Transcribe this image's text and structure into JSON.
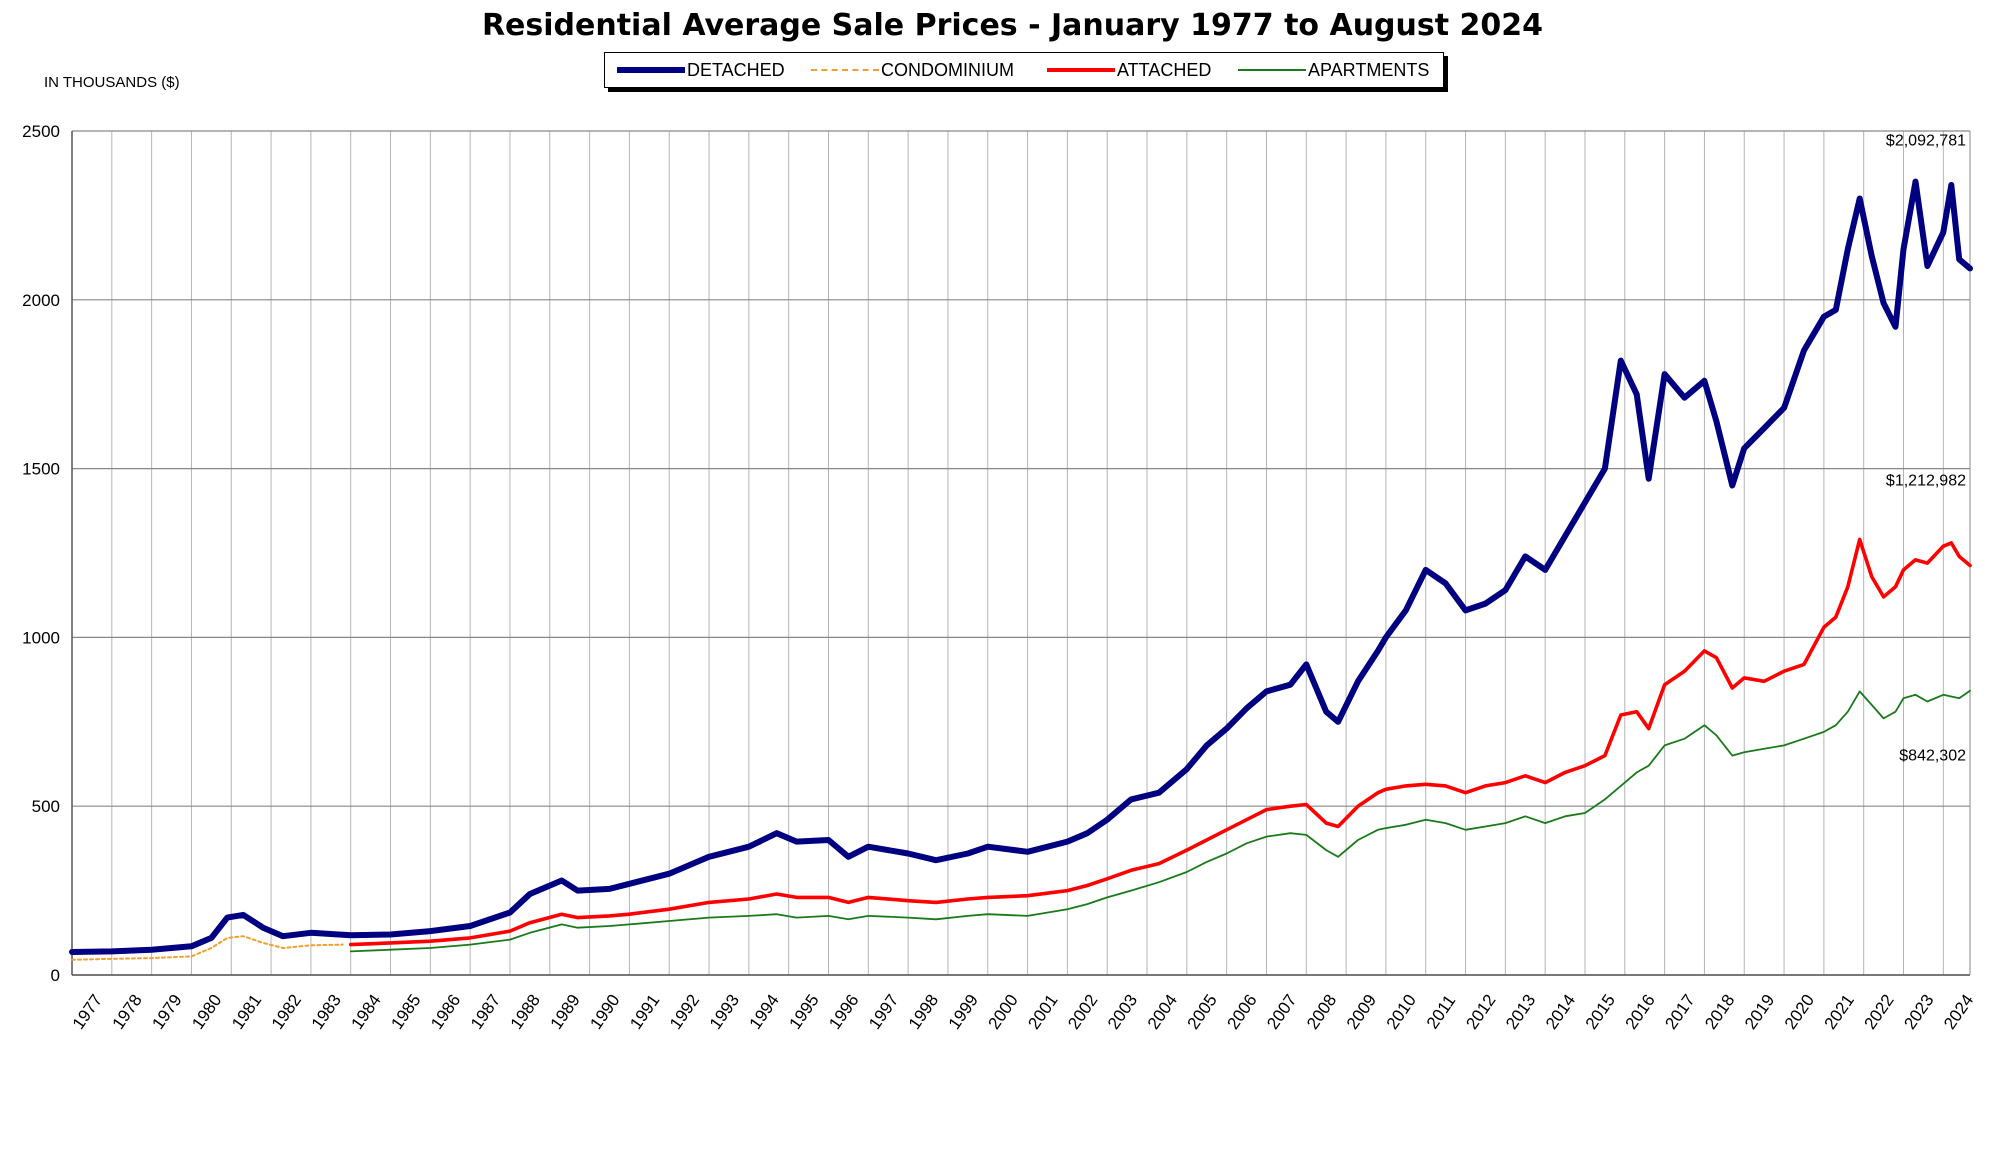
{
  "chart_data": {
    "type": "line",
    "title": "Residential Average Sale Prices  -  January 1977 to August 2024",
    "unit_label": "IN THOUSANDS ($)",
    "ylim": [
      0,
      2500
    ],
    "yticks": [
      0,
      500,
      1000,
      1500,
      2000,
      2500
    ],
    "xlim": [
      1977,
      2024.67
    ],
    "xtick_labels": [
      "1977",
      "1978",
      "1979",
      "1980",
      "1981",
      "1982",
      "1983",
      "1984",
      "1985",
      "1986",
      "1987",
      "1988",
      "1989",
      "1990",
      "1991",
      "1992",
      "1993",
      "1994",
      "1995",
      "1996",
      "1997",
      "1998",
      "1999",
      "2000",
      "2001",
      "2002",
      "2003",
      "2004",
      "2005",
      "2006",
      "2007",
      "2008",
      "2009",
      "2010",
      "2011",
      "2012",
      "2013",
      "2014",
      "2015",
      "2016",
      "2017",
      "2018",
      "2019",
      "2020",
      "2021",
      "2022",
      "2023",
      "2024"
    ],
    "grid": true,
    "legend_placement": "top-center",
    "series": [
      {
        "name": "DETACHED",
        "color": "#000080",
        "style": "solid-thick",
        "points": [
          [
            1977,
            68
          ],
          [
            1978,
            70
          ],
          [
            1979,
            75
          ],
          [
            1980,
            85
          ],
          [
            1980.5,
            110
          ],
          [
            1980.9,
            170
          ],
          [
            1981.3,
            178
          ],
          [
            1981.8,
            140
          ],
          [
            1982.3,
            115
          ],
          [
            1983,
            125
          ],
          [
            1984,
            118
          ],
          [
            1985,
            120
          ],
          [
            1986,
            130
          ],
          [
            1987,
            145
          ],
          [
            1988,
            185
          ],
          [
            1988.5,
            240
          ],
          [
            1989.3,
            280
          ],
          [
            1989.7,
            250
          ],
          [
            1990.5,
            255
          ],
          [
            1991,
            270
          ],
          [
            1992,
            300
          ],
          [
            1993,
            350
          ],
          [
            1994,
            380
          ],
          [
            1994.7,
            420
          ],
          [
            1995.2,
            395
          ],
          [
            1996,
            400
          ],
          [
            1996.5,
            350
          ],
          [
            1997,
            380
          ],
          [
            1998,
            360
          ],
          [
            1998.7,
            340
          ],
          [
            1999.5,
            360
          ],
          [
            2000,
            380
          ],
          [
            2001,
            365
          ],
          [
            2002,
            395
          ],
          [
            2002.5,
            420
          ],
          [
            2003,
            460
          ],
          [
            2003.6,
            520
          ],
          [
            2004.3,
            540
          ],
          [
            2005,
            610
          ],
          [
            2005.5,
            680
          ],
          [
            2006,
            730
          ],
          [
            2006.5,
            790
          ],
          [
            2007,
            840
          ],
          [
            2007.6,
            860
          ],
          [
            2008,
            920
          ],
          [
            2008.5,
            780
          ],
          [
            2008.8,
            750
          ],
          [
            2009.3,
            870
          ],
          [
            2009.8,
            960
          ],
          [
            2010,
            1000
          ],
          [
            2010.5,
            1080
          ],
          [
            2011,
            1200
          ],
          [
            2011.5,
            1160
          ],
          [
            2012,
            1080
          ],
          [
            2012.5,
            1100
          ],
          [
            2013,
            1140
          ],
          [
            2013.5,
            1240
          ],
          [
            2014,
            1200
          ],
          [
            2014.5,
            1300
          ],
          [
            2015,
            1400
          ],
          [
            2015.5,
            1500
          ],
          [
            2015.9,
            1820
          ],
          [
            2016.3,
            1720
          ],
          [
            2016.6,
            1470
          ],
          [
            2017,
            1780
          ],
          [
            2017.5,
            1710
          ],
          [
            2018,
            1760
          ],
          [
            2018.3,
            1640
          ],
          [
            2018.7,
            1450
          ],
          [
            2019,
            1560
          ],
          [
            2019.5,
            1620
          ],
          [
            2020,
            1680
          ],
          [
            2020.5,
            1850
          ],
          [
            2021,
            1950
          ],
          [
            2021.3,
            1970
          ],
          [
            2021.6,
            2150
          ],
          [
            2021.9,
            2300
          ],
          [
            2022.2,
            2130
          ],
          [
            2022.5,
            1990
          ],
          [
            2022.8,
            1920
          ],
          [
            2023,
            2150
          ],
          [
            2023.3,
            2350
          ],
          [
            2023.6,
            2100
          ],
          [
            2024,
            2200
          ],
          [
            2024.2,
            2340
          ],
          [
            2024.4,
            2120
          ],
          [
            2024.67,
            2093
          ]
        ]
      },
      {
        "name": "CONDOMINIUM",
        "color": "#f0a030",
        "style": "dotted",
        "points": [
          [
            1977,
            45
          ],
          [
            1978,
            48
          ],
          [
            1979,
            50
          ],
          [
            1980,
            55
          ],
          [
            1980.5,
            80
          ],
          [
            1980.9,
            110
          ],
          [
            1981.3,
            115
          ],
          [
            1981.8,
            95
          ],
          [
            1982.3,
            80
          ],
          [
            1983,
            88
          ],
          [
            1983.8,
            90
          ]
        ]
      },
      {
        "name": "ATTACHED",
        "color": "#ff0000",
        "style": "solid-medium",
        "points": [
          [
            1984,
            90
          ],
          [
            1985,
            95
          ],
          [
            1986,
            100
          ],
          [
            1987,
            110
          ],
          [
            1988,
            130
          ],
          [
            1988.5,
            155
          ],
          [
            1989.3,
            180
          ],
          [
            1989.7,
            170
          ],
          [
            1990.5,
            175
          ],
          [
            1991,
            180
          ],
          [
            1992,
            195
          ],
          [
            1993,
            215
          ],
          [
            1994,
            225
          ],
          [
            1994.7,
            240
          ],
          [
            1995.2,
            230
          ],
          [
            1996,
            230
          ],
          [
            1996.5,
            215
          ],
          [
            1997,
            230
          ],
          [
            1998,
            220
          ],
          [
            1998.7,
            215
          ],
          [
            1999.5,
            225
          ],
          [
            2000,
            230
          ],
          [
            2001,
            235
          ],
          [
            2002,
            250
          ],
          [
            2002.5,
            265
          ],
          [
            2003,
            285
          ],
          [
            2003.6,
            310
          ],
          [
            2004.3,
            330
          ],
          [
            2005,
            370
          ],
          [
            2005.5,
            400
          ],
          [
            2006,
            430
          ],
          [
            2006.5,
            460
          ],
          [
            2007,
            490
          ],
          [
            2007.6,
            500
          ],
          [
            2008,
            505
          ],
          [
            2008.5,
            450
          ],
          [
            2008.8,
            440
          ],
          [
            2009.3,
            500
          ],
          [
            2009.8,
            540
          ],
          [
            2010,
            550
          ],
          [
            2010.5,
            560
          ],
          [
            2011,
            565
          ],
          [
            2011.5,
            560
          ],
          [
            2012,
            540
          ],
          [
            2012.5,
            560
          ],
          [
            2013,
            570
          ],
          [
            2013.5,
            590
          ],
          [
            2014,
            570
          ],
          [
            2014.5,
            600
          ],
          [
            2015,
            620
          ],
          [
            2015.5,
            650
          ],
          [
            2015.9,
            770
          ],
          [
            2016.3,
            780
          ],
          [
            2016.6,
            730
          ],
          [
            2017,
            860
          ],
          [
            2017.5,
            900
          ],
          [
            2018,
            960
          ],
          [
            2018.3,
            940
          ],
          [
            2018.7,
            850
          ],
          [
            2019,
            880
          ],
          [
            2019.5,
            870
          ],
          [
            2020,
            900
          ],
          [
            2020.5,
            920
          ],
          [
            2021,
            1030
          ],
          [
            2021.3,
            1060
          ],
          [
            2021.6,
            1150
          ],
          [
            2021.9,
            1290
          ],
          [
            2022.2,
            1180
          ],
          [
            2022.5,
            1120
          ],
          [
            2022.8,
            1150
          ],
          [
            2023,
            1200
          ],
          [
            2023.3,
            1230
          ],
          [
            2023.6,
            1220
          ],
          [
            2024,
            1270
          ],
          [
            2024.2,
            1280
          ],
          [
            2024.4,
            1240
          ],
          [
            2024.67,
            1213
          ]
        ]
      },
      {
        "name": "APARTMENTS",
        "color": "#1a7a1a",
        "style": "solid-thin",
        "points": [
          [
            1984,
            70
          ],
          [
            1985,
            75
          ],
          [
            1986,
            80
          ],
          [
            1987,
            90
          ],
          [
            1988,
            105
          ],
          [
            1988.5,
            125
          ],
          [
            1989.3,
            150
          ],
          [
            1989.7,
            140
          ],
          [
            1990.5,
            145
          ],
          [
            1991,
            150
          ],
          [
            1992,
            160
          ],
          [
            1993,
            170
          ],
          [
            1994,
            175
          ],
          [
            1994.7,
            180
          ],
          [
            1995.2,
            170
          ],
          [
            1996,
            175
          ],
          [
            1996.5,
            165
          ],
          [
            1997,
            175
          ],
          [
            1998,
            170
          ],
          [
            1998.7,
            165
          ],
          [
            1999.5,
            175
          ],
          [
            2000,
            180
          ],
          [
            2001,
            175
          ],
          [
            2002,
            195
          ],
          [
            2002.5,
            210
          ],
          [
            2003,
            230
          ],
          [
            2003.6,
            250
          ],
          [
            2004.3,
            275
          ],
          [
            2005,
            305
          ],
          [
            2005.5,
            335
          ],
          [
            2006,
            360
          ],
          [
            2006.5,
            390
          ],
          [
            2007,
            410
          ],
          [
            2007.6,
            420
          ],
          [
            2008,
            415
          ],
          [
            2008.5,
            370
          ],
          [
            2008.8,
            350
          ],
          [
            2009.3,
            400
          ],
          [
            2009.8,
            430
          ],
          [
            2010,
            435
          ],
          [
            2010.5,
            445
          ],
          [
            2011,
            460
          ],
          [
            2011.5,
            450
          ],
          [
            2012,
            430
          ],
          [
            2012.5,
            440
          ],
          [
            2013,
            450
          ],
          [
            2013.5,
            470
          ],
          [
            2014,
            450
          ],
          [
            2014.5,
            470
          ],
          [
            2015,
            480
          ],
          [
            2015.5,
            520
          ],
          [
            2015.9,
            560
          ],
          [
            2016.3,
            600
          ],
          [
            2016.6,
            620
          ],
          [
            2017,
            680
          ],
          [
            2017.5,
            700
          ],
          [
            2018,
            740
          ],
          [
            2018.3,
            710
          ],
          [
            2018.7,
            650
          ],
          [
            2019,
            660
          ],
          [
            2019.5,
            670
          ],
          [
            2020,
            680
          ],
          [
            2020.5,
            700
          ],
          [
            2021,
            720
          ],
          [
            2021.3,
            740
          ],
          [
            2021.6,
            780
          ],
          [
            2021.9,
            840
          ],
          [
            2022.2,
            800
          ],
          [
            2022.5,
            760
          ],
          [
            2022.8,
            780
          ],
          [
            2023,
            820
          ],
          [
            2023.3,
            830
          ],
          [
            2023.6,
            810
          ],
          [
            2024,
            830
          ],
          [
            2024.2,
            825
          ],
          [
            2024.4,
            820
          ],
          [
            2024.67,
            842
          ]
        ]
      }
    ],
    "end_labels": [
      {
        "series": "DETACHED",
        "text": "$2,092,781"
      },
      {
        "series": "ATTACHED",
        "text": "$1,212,982"
      },
      {
        "series": "APARTMENTS",
        "text": "$842,302"
      }
    ]
  },
  "legend": [
    {
      "label": "DETACHED",
      "color": "#000080"
    },
    {
      "label": "CONDOMINIUM",
      "color": "#f0a030"
    },
    {
      "label": "ATTACHED",
      "color": "#ff0000"
    },
    {
      "label": "APARTMENTS",
      "color": "#1a7a1a"
    }
  ]
}
